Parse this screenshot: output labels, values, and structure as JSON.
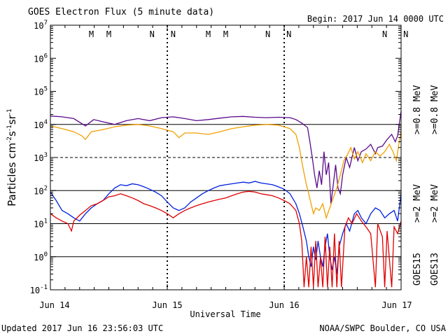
{
  "header": {
    "title": "GOES Electron Flux (5 minute data)",
    "begin": "Begin: 2017 Jun 14 0000 UTC"
  },
  "footer": {
    "updated": "Updated 2017 Jun 16 23:56:03 UTC",
    "credit": "NOAA/SWPC Boulder, CO USA"
  },
  "chart_data": {
    "type": "line",
    "xlabel": "Universal Time",
    "ylabel": "Particles cm-2s-1sr-1",
    "yscale": "log",
    "ylim": [
      0.1,
      10000000
    ],
    "xlim": [
      0,
      3
    ],
    "y_ticks": [
      "10^7",
      "10^6",
      "10^5",
      "10^4",
      "10^3",
      "10^2",
      "10^1",
      "10^0",
      "10^-1"
    ],
    "x_ticks": [
      {
        "day": 0,
        "label": "Jun 14"
      },
      {
        "day": 1,
        "label": "Jun 15"
      },
      {
        "day": 2,
        "label": "Jun 16"
      },
      {
        "day": 3,
        "label": "Jun 17"
      }
    ],
    "thresholds": [
      {
        "value": 10000,
        "style": "solid"
      },
      {
        "value": 1000,
        "style": "dashed"
      },
      {
        "value": 100,
        "style": "solid"
      },
      {
        "value": 10,
        "style": "solid"
      },
      {
        "value": 1,
        "style": "solid"
      }
    ],
    "markers": [
      {
        "day": 0.35,
        "text": "M",
        "color": "#dd0000"
      },
      {
        "day": 0.5,
        "text": "M",
        "color": "#0000cc"
      },
      {
        "day": 0.87,
        "text": "N",
        "color": "#dd0000"
      },
      {
        "day": 1.05,
        "text": "N",
        "color": "#0000cc"
      },
      {
        "day": 1.35,
        "text": "M",
        "color": "#dd0000"
      },
      {
        "day": 1.5,
        "text": "M",
        "color": "#0000cc"
      },
      {
        "day": 1.86,
        "text": "N",
        "color": "#dd0000"
      },
      {
        "day": 2.04,
        "text": "N",
        "color": "#0000cc"
      },
      {
        "day": 2.86,
        "text": "N",
        "color": "#dd0000"
      },
      {
        "day": 3.04,
        "text": "N",
        "color": "#0000cc"
      }
    ],
    "series": [
      {
        "name": ">=0.8 MeV",
        "satellite": "GOES15",
        "color": "#5a0a8c",
        "points": [
          [
            0,
            18000
          ],
          [
            0.1,
            17000
          ],
          [
            0.2,
            15000
          ],
          [
            0.3,
            9000
          ],
          [
            0.37,
            14000
          ],
          [
            0.45,
            12000
          ],
          [
            0.55,
            10000
          ],
          [
            0.65,
            13000
          ],
          [
            0.75,
            15000
          ],
          [
            0.85,
            13000
          ],
          [
            0.95,
            16000
          ],
          [
            1.05,
            17000
          ],
          [
            1.15,
            15000
          ],
          [
            1.25,
            13000
          ],
          [
            1.35,
            14000
          ],
          [
            1.45,
            15500
          ],
          [
            1.55,
            17000
          ],
          [
            1.65,
            17500
          ],
          [
            1.75,
            16500
          ],
          [
            1.85,
            16000
          ],
          [
            1.95,
            16500
          ],
          [
            2.05,
            16000
          ],
          [
            2.1,
            14000
          ],
          [
            2.15,
            11000
          ],
          [
            2.2,
            8000
          ],
          [
            2.22,
            3000
          ],
          [
            2.24,
            1000
          ],
          [
            2.26,
            300
          ],
          [
            2.28,
            120
          ],
          [
            2.3,
            400
          ],
          [
            2.32,
            150
          ],
          [
            2.34,
            1500
          ],
          [
            2.36,
            300
          ],
          [
            2.38,
            700
          ],
          [
            2.4,
            40
          ],
          [
            2.42,
            150
          ],
          [
            2.44,
            600
          ],
          [
            2.46,
            120
          ],
          [
            2.48,
            80
          ],
          [
            2.5,
            300
          ],
          [
            2.53,
            1000
          ],
          [
            2.56,
            500
          ],
          [
            2.6,
            2000
          ],
          [
            2.63,
            800
          ],
          [
            2.66,
            1500
          ],
          [
            2.7,
            1800
          ],
          [
            2.74,
            2500
          ],
          [
            2.78,
            1300
          ],
          [
            2.8,
            2000
          ],
          [
            2.84,
            2200
          ],
          [
            2.88,
            3500
          ],
          [
            2.92,
            5000
          ],
          [
            2.95,
            3000
          ],
          [
            2.97,
            4500
          ],
          [
            3.0,
            25000
          ]
        ]
      },
      {
        "name": ">=0.8 MeV",
        "satellite": "GOES13",
        "color": "#f0a000",
        "points": [
          [
            0,
            9000
          ],
          [
            0.1,
            7500
          ],
          [
            0.2,
            6000
          ],
          [
            0.27,
            4500
          ],
          [
            0.3,
            3500
          ],
          [
            0.35,
            6000
          ],
          [
            0.45,
            7000
          ],
          [
            0.55,
            8500
          ],
          [
            0.65,
            9500
          ],
          [
            0.75,
            10000
          ],
          [
            0.85,
            9000
          ],
          [
            0.95,
            7500
          ],
          [
            1.05,
            6000
          ],
          [
            1.1,
            4000
          ],
          [
            1.15,
            5500
          ],
          [
            1.25,
            5500
          ],
          [
            1.35,
            5000
          ],
          [
            1.45,
            6000
          ],
          [
            1.55,
            7500
          ],
          [
            1.65,
            8500
          ],
          [
            1.75,
            9500
          ],
          [
            1.85,
            10000
          ],
          [
            1.95,
            9500
          ],
          [
            2.05,
            7500
          ],
          [
            2.1,
            5000
          ],
          [
            2.13,
            2000
          ],
          [
            2.16,
            500
          ],
          [
            2.19,
            150
          ],
          [
            2.21,
            80
          ],
          [
            2.23,
            40
          ],
          [
            2.25,
            20
          ],
          [
            2.27,
            30
          ],
          [
            2.3,
            25
          ],
          [
            2.33,
            40
          ],
          [
            2.36,
            15
          ],
          [
            2.39,
            30
          ],
          [
            2.42,
            60
          ],
          [
            2.45,
            120
          ],
          [
            2.48,
            300
          ],
          [
            2.51,
            800
          ],
          [
            2.54,
            1200
          ],
          [
            2.57,
            2000
          ],
          [
            2.6,
            900
          ],
          [
            2.63,
            1500
          ],
          [
            2.67,
            700
          ],
          [
            2.7,
            1300
          ],
          [
            2.74,
            800
          ],
          [
            2.78,
            1500
          ],
          [
            2.82,
            1100
          ],
          [
            2.86,
            1500
          ],
          [
            2.9,
            2500
          ],
          [
            2.93,
            1500
          ],
          [
            2.96,
            800
          ],
          [
            2.98,
            2500
          ],
          [
            3.0,
            6000
          ]
        ]
      },
      {
        "name": ">=2 MeV",
        "satellite": "GOES15",
        "color": "#0020e0",
        "points": [
          [
            0,
            90
          ],
          [
            0.05,
            50
          ],
          [
            0.1,
            25
          ],
          [
            0.15,
            20
          ],
          [
            0.2,
            15
          ],
          [
            0.25,
            12
          ],
          [
            0.3,
            20
          ],
          [
            0.35,
            30
          ],
          [
            0.4,
            40
          ],
          [
            0.45,
            50
          ],
          [
            0.5,
            80
          ],
          [
            0.55,
            120
          ],
          [
            0.6,
            150
          ],
          [
            0.65,
            140
          ],
          [
            0.7,
            160
          ],
          [
            0.75,
            150
          ],
          [
            0.8,
            130
          ],
          [
            0.85,
            110
          ],
          [
            0.9,
            90
          ],
          [
            0.95,
            70
          ],
          [
            1.0,
            45
          ],
          [
            1.05,
            30
          ],
          [
            1.1,
            25
          ],
          [
            1.15,
            30
          ],
          [
            1.2,
            45
          ],
          [
            1.25,
            60
          ],
          [
            1.3,
            80
          ],
          [
            1.35,
            100
          ],
          [
            1.4,
            120
          ],
          [
            1.45,
            140
          ],
          [
            1.5,
            150
          ],
          [
            1.55,
            160
          ],
          [
            1.6,
            170
          ],
          [
            1.65,
            180
          ],
          [
            1.7,
            170
          ],
          [
            1.75,
            190
          ],
          [
            1.8,
            170
          ],
          [
            1.85,
            160
          ],
          [
            1.9,
            150
          ],
          [
            1.95,
            130
          ],
          [
            2.0,
            110
          ],
          [
            2.05,
            80
          ],
          [
            2.1,
            40
          ],
          [
            2.13,
            20
          ],
          [
            2.16,
            8
          ],
          [
            2.19,
            3
          ],
          [
            2.21,
            1
          ],
          [
            2.23,
            0.5
          ],
          [
            2.25,
            2
          ],
          [
            2.27,
            0.8
          ],
          [
            2.29,
            3
          ],
          [
            2.31,
            1
          ],
          [
            2.33,
            0.5
          ],
          [
            2.35,
            2
          ],
          [
            2.37,
            5
          ],
          [
            2.39,
            1
          ],
          [
            2.41,
            0.4
          ],
          [
            2.43,
            1
          ],
          [
            2.45,
            0.3
          ],
          [
            2.47,
            2
          ],
          [
            2.5,
            5
          ],
          [
            2.53,
            10
          ],
          [
            2.56,
            6
          ],
          [
            2.6,
            20
          ],
          [
            2.63,
            25
          ],
          [
            2.66,
            15
          ],
          [
            2.7,
            10
          ],
          [
            2.74,
            20
          ],
          [
            2.78,
            30
          ],
          [
            2.82,
            25
          ],
          [
            2.86,
            15
          ],
          [
            2.9,
            20
          ],
          [
            2.94,
            25
          ],
          [
            2.97,
            12
          ],
          [
            3.0,
            80
          ]
        ]
      },
      {
        "name": ">=2 MeV",
        "satellite": "GOES13",
        "color": "#e00000",
        "points": [
          [
            0,
            20
          ],
          [
            0.05,
            15
          ],
          [
            0.1,
            12
          ],
          [
            0.15,
            10
          ],
          [
            0.18,
            6
          ],
          [
            0.2,
            12
          ],
          [
            0.25,
            18
          ],
          [
            0.3,
            25
          ],
          [
            0.35,
            35
          ],
          [
            0.4,
            40
          ],
          [
            0.45,
            50
          ],
          [
            0.5,
            65
          ],
          [
            0.55,
            70
          ],
          [
            0.6,
            80
          ],
          [
            0.65,
            70
          ],
          [
            0.7,
            60
          ],
          [
            0.75,
            50
          ],
          [
            0.8,
            40
          ],
          [
            0.85,
            35
          ],
          [
            0.9,
            30
          ],
          [
            0.95,
            25
          ],
          [
            1.0,
            20
          ],
          [
            1.05,
            15
          ],
          [
            1.1,
            20
          ],
          [
            1.15,
            25
          ],
          [
            1.2,
            30
          ],
          [
            1.25,
            35
          ],
          [
            1.3,
            40
          ],
          [
            1.35,
            45
          ],
          [
            1.4,
            50
          ],
          [
            1.45,
            55
          ],
          [
            1.5,
            60
          ],
          [
            1.55,
            70
          ],
          [
            1.6,
            80
          ],
          [
            1.65,
            90
          ],
          [
            1.7,
            95
          ],
          [
            1.75,
            90
          ],
          [
            1.8,
            80
          ],
          [
            1.85,
            75
          ],
          [
            1.9,
            70
          ],
          [
            1.95,
            60
          ],
          [
            2.0,
            50
          ],
          [
            2.05,
            40
          ],
          [
            2.1,
            25
          ],
          [
            2.13,
            10
          ],
          [
            2.15,
            3
          ],
          [
            2.17,
            0.12
          ],
          [
            2.19,
            1
          ],
          [
            2.21,
            0.12
          ],
          [
            2.23,
            2
          ],
          [
            2.25,
            0.12
          ],
          [
            2.27,
            3
          ],
          [
            2.29,
            0.12
          ],
          [
            2.31,
            1
          ],
          [
            2.33,
            0.12
          ],
          [
            2.35,
            4
          ],
          [
            2.37,
            0.12
          ],
          [
            2.39,
            2
          ],
          [
            2.41,
            0.12
          ],
          [
            2.43,
            5
          ],
          [
            2.45,
            0.12
          ],
          [
            2.47,
            3
          ],
          [
            2.49,
            0.12
          ],
          [
            2.52,
            8
          ],
          [
            2.55,
            15
          ],
          [
            2.58,
            10
          ],
          [
            2.62,
            20
          ],
          [
            2.66,
            12
          ],
          [
            2.7,
            8
          ],
          [
            2.74,
            5
          ],
          [
            2.78,
            0.12
          ],
          [
            2.8,
            10
          ],
          [
            2.84,
            4
          ],
          [
            2.86,
            0.12
          ],
          [
            2.88,
            6
          ],
          [
            2.92,
            0.12
          ],
          [
            2.94,
            8
          ],
          [
            2.97,
            5
          ],
          [
            3.0,
            12
          ]
        ]
      }
    ]
  }
}
